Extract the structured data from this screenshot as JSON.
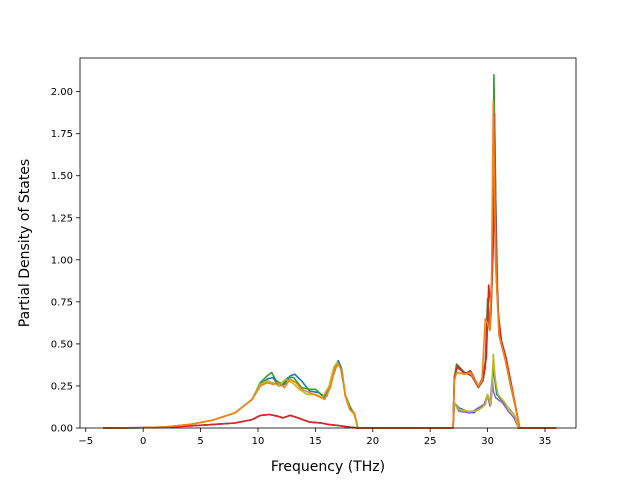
{
  "chart_data": {
    "type": "line",
    "title": "",
    "xlabel": "Frequency (THz)",
    "ylabel": "Partial Density of States",
    "xlim": [
      -5.5,
      37.7
    ],
    "ylim": [
      0,
      2.2
    ],
    "xticks": [
      -5,
      0,
      5,
      10,
      15,
      20,
      25,
      30,
      35
    ],
    "xtick_labels": [
      "−5",
      "0",
      "5",
      "10",
      "15",
      "20",
      "25",
      "30",
      "35"
    ],
    "yticks": [
      0,
      0.25,
      0.5,
      0.75,
      1.0,
      1.25,
      1.5,
      1.75,
      2.0
    ],
    "ytick_labels": [
      "0.00",
      "0.25",
      "0.50",
      "0.75",
      "1.00",
      "1.25",
      "1.50",
      "1.75",
      "2.00"
    ],
    "grid": false,
    "legend": "none",
    "series": [
      {
        "color": "#1f77b4",
        "points": [
          [
            -3.5,
            0
          ],
          [
            0,
            0.002
          ],
          [
            2,
            0.006
          ],
          [
            4,
            0.02
          ],
          [
            6,
            0.045
          ],
          [
            8,
            0.09
          ],
          [
            9.5,
            0.17
          ],
          [
            10.2,
            0.26
          ],
          [
            10.8,
            0.29
          ],
          [
            11.3,
            0.3
          ],
          [
            11.8,
            0.25
          ],
          [
            12.3,
            0.26
          ],
          [
            12.8,
            0.31
          ],
          [
            13.2,
            0.32
          ],
          [
            13.8,
            0.28
          ],
          [
            14.5,
            0.22
          ],
          [
            15.3,
            0.21
          ],
          [
            15.8,
            0.18
          ],
          [
            16.3,
            0.26
          ],
          [
            16.7,
            0.37
          ],
          [
            17.0,
            0.4
          ],
          [
            17.3,
            0.35
          ],
          [
            17.6,
            0.2
          ],
          [
            18.0,
            0.12
          ],
          [
            18.4,
            0.09
          ],
          [
            18.7,
            0
          ],
          [
            27.0,
            0
          ],
          [
            27.1,
            0.15
          ],
          [
            27.5,
            0.12
          ],
          [
            28.2,
            0.1
          ],
          [
            28.8,
            0.09
          ],
          [
            29.3,
            0.12
          ],
          [
            29.8,
            0.14
          ],
          [
            30.0,
            0.19
          ],
          [
            30.3,
            0.14
          ],
          [
            30.5,
            0.38
          ],
          [
            30.6,
            0.3
          ],
          [
            30.8,
            0.2
          ],
          [
            31.3,
            0.16
          ],
          [
            31.8,
            0.12
          ],
          [
            32.3,
            0.08
          ],
          [
            32.7,
            0
          ],
          [
            36,
            0
          ]
        ]
      },
      {
        "color": "#2ca02c",
        "points": [
          [
            -3.5,
            0
          ],
          [
            0,
            0.002
          ],
          [
            2,
            0.007
          ],
          [
            4,
            0.02
          ],
          [
            6,
            0.045
          ],
          [
            8,
            0.09
          ],
          [
            9.5,
            0.17
          ],
          [
            10.2,
            0.27
          ],
          [
            10.8,
            0.31
          ],
          [
            11.2,
            0.33
          ],
          [
            11.6,
            0.28
          ],
          [
            12.2,
            0.26
          ],
          [
            12.6,
            0.3
          ],
          [
            13.1,
            0.3
          ],
          [
            13.8,
            0.24
          ],
          [
            14.5,
            0.23
          ],
          [
            15.0,
            0.23
          ],
          [
            15.5,
            0.2
          ],
          [
            16.0,
            0.19
          ],
          [
            16.5,
            0.3
          ],
          [
            16.9,
            0.38
          ],
          [
            17.2,
            0.36
          ],
          [
            17.6,
            0.2
          ],
          [
            18.0,
            0.13
          ],
          [
            18.4,
            0.08
          ],
          [
            18.7,
            0
          ],
          [
            27.0,
            0
          ],
          [
            27.1,
            0.3
          ],
          [
            27.3,
            0.38
          ],
          [
            28.0,
            0.33
          ],
          [
            28.5,
            0.33
          ],
          [
            29.2,
            0.25
          ],
          [
            29.6,
            0.3
          ],
          [
            29.8,
            0.4
          ],
          [
            30.0,
            0.77
          ],
          [
            30.2,
            0.62
          ],
          [
            30.3,
            0.7
          ],
          [
            30.45,
            1.0
          ],
          [
            30.55,
            2.1
          ],
          [
            30.65,
            1.6
          ],
          [
            30.8,
            0.9
          ],
          [
            31.0,
            0.55
          ],
          [
            31.5,
            0.42
          ],
          [
            32.0,
            0.25
          ],
          [
            32.5,
            0.1
          ],
          [
            32.8,
            0
          ],
          [
            36,
            0
          ]
        ]
      },
      {
        "color": "#9467bd",
        "points": [
          [
            -3.5,
            0
          ],
          [
            0,
            0.002
          ],
          [
            2,
            0.005
          ],
          [
            4,
            0.012
          ],
          [
            6,
            0.02
          ],
          [
            8,
            0.03
          ],
          [
            9.5,
            0.05
          ],
          [
            10.2,
            0.075
          ],
          [
            11.0,
            0.08
          ],
          [
            11.7,
            0.07
          ],
          [
            12.2,
            0.06
          ],
          [
            12.8,
            0.075
          ],
          [
            13.5,
            0.06
          ],
          [
            14.5,
            0.035
          ],
          [
            15.5,
            0.03
          ],
          [
            16.2,
            0.02
          ],
          [
            17.0,
            0.015
          ],
          [
            18.0,
            0.005
          ],
          [
            18.7,
            0
          ],
          [
            27.0,
            0
          ],
          [
            27.1,
            0.15
          ],
          [
            27.5,
            0.1
          ],
          [
            28.5,
            0.09
          ],
          [
            29.2,
            0.12
          ],
          [
            29.7,
            0.14
          ],
          [
            30.0,
            0.2
          ],
          [
            30.2,
            0.13
          ],
          [
            30.4,
            0.3
          ],
          [
            30.5,
            0.22
          ],
          [
            30.7,
            0.18
          ],
          [
            31.3,
            0.15
          ],
          [
            31.8,
            0.1
          ],
          [
            32.3,
            0.06
          ],
          [
            32.7,
            0
          ],
          [
            36,
            0
          ]
        ]
      },
      {
        "color": "#bcbd22",
        "points": [
          [
            -3.5,
            0
          ],
          [
            0,
            0.002
          ],
          [
            2,
            0.006
          ],
          [
            4,
            0.02
          ],
          [
            6,
            0.045
          ],
          [
            8,
            0.09
          ],
          [
            9.5,
            0.17
          ],
          [
            10.2,
            0.26
          ],
          [
            10.8,
            0.28
          ],
          [
            11.3,
            0.27
          ],
          [
            11.8,
            0.25
          ],
          [
            12.4,
            0.29
          ],
          [
            13.0,
            0.27
          ],
          [
            13.6,
            0.23
          ],
          [
            14.3,
            0.2
          ],
          [
            15.0,
            0.2
          ],
          [
            15.6,
            0.18
          ],
          [
            16.2,
            0.25
          ],
          [
            16.6,
            0.36
          ],
          [
            16.9,
            0.39
          ],
          [
            17.3,
            0.34
          ],
          [
            17.6,
            0.2
          ],
          [
            18.0,
            0.11
          ],
          [
            18.4,
            0.09
          ],
          [
            18.7,
            0
          ],
          [
            27.0,
            0
          ],
          [
            27.1,
            0.15
          ],
          [
            27.5,
            0.11
          ],
          [
            28.3,
            0.1
          ],
          [
            29.0,
            0.1
          ],
          [
            29.5,
            0.12
          ],
          [
            29.8,
            0.14
          ],
          [
            30.0,
            0.2
          ],
          [
            30.3,
            0.14
          ],
          [
            30.5,
            0.44
          ],
          [
            30.65,
            0.3
          ],
          [
            30.9,
            0.2
          ],
          [
            31.4,
            0.16
          ],
          [
            31.9,
            0.11
          ],
          [
            32.4,
            0.07
          ],
          [
            32.7,
            0
          ],
          [
            36,
            0
          ]
        ]
      },
      {
        "color": "#8c564b",
        "points": [
          [
            -3.5,
            0
          ],
          [
            0,
            0.002
          ],
          [
            2,
            0.005
          ],
          [
            4,
            0.012
          ],
          [
            6,
            0.02
          ],
          [
            8,
            0.03
          ],
          [
            9.5,
            0.05
          ],
          [
            10.2,
            0.075
          ],
          [
            11.0,
            0.08
          ],
          [
            11.7,
            0.07
          ],
          [
            12.2,
            0.06
          ],
          [
            12.8,
            0.075
          ],
          [
            13.5,
            0.06
          ],
          [
            14.5,
            0.035
          ],
          [
            15.5,
            0.03
          ],
          [
            16.2,
            0.02
          ],
          [
            17.0,
            0.015
          ],
          [
            18.0,
            0.005
          ],
          [
            18.7,
            0
          ],
          [
            27.0,
            0
          ],
          [
            27.1,
            0.28
          ],
          [
            27.3,
            0.36
          ],
          [
            28.0,
            0.33
          ],
          [
            28.6,
            0.31
          ],
          [
            29.2,
            0.24
          ],
          [
            29.6,
            0.28
          ],
          [
            29.8,
            0.36
          ],
          [
            30.0,
            0.72
          ],
          [
            30.2,
            0.58
          ],
          [
            30.3,
            0.68
          ],
          [
            30.5,
            1.2
          ],
          [
            30.6,
            1.87
          ],
          [
            30.7,
            1.4
          ],
          [
            30.85,
            0.85
          ],
          [
            31.0,
            0.55
          ],
          [
            31.5,
            0.42
          ],
          [
            32.0,
            0.27
          ],
          [
            32.5,
            0.11
          ],
          [
            32.8,
            0
          ],
          [
            36,
            0
          ]
        ]
      },
      {
        "color": "#d62728",
        "points": [
          [
            -3.5,
            0
          ],
          [
            0,
            0.002
          ],
          [
            2,
            0.005
          ],
          [
            4,
            0.012
          ],
          [
            6,
            0.02
          ],
          [
            8,
            0.03
          ],
          [
            9.5,
            0.05
          ],
          [
            10.2,
            0.075
          ],
          [
            11.0,
            0.08
          ],
          [
            11.7,
            0.07
          ],
          [
            12.2,
            0.06
          ],
          [
            12.8,
            0.075
          ],
          [
            13.5,
            0.06
          ],
          [
            14.5,
            0.035
          ],
          [
            15.5,
            0.03
          ],
          [
            16.2,
            0.02
          ],
          [
            17.0,
            0.015
          ],
          [
            18.0,
            0.005
          ],
          [
            18.7,
            0
          ],
          [
            27.0,
            0
          ],
          [
            27.1,
            0.3
          ],
          [
            27.4,
            0.37
          ],
          [
            28.0,
            0.32
          ],
          [
            28.5,
            0.34
          ],
          [
            29.2,
            0.25
          ],
          [
            29.6,
            0.3
          ],
          [
            29.9,
            0.42
          ],
          [
            30.1,
            0.85
          ],
          [
            30.3,
            0.72
          ],
          [
            30.5,
            1.1
          ],
          [
            30.6,
            1.45
          ],
          [
            30.7,
            1.0
          ],
          [
            30.9,
            0.7
          ],
          [
            31.2,
            0.52
          ],
          [
            31.6,
            0.42
          ],
          [
            32.1,
            0.25
          ],
          [
            32.5,
            0.1
          ],
          [
            32.8,
            0
          ],
          [
            36,
            0
          ]
        ]
      },
      {
        "color": "#ff7f0e",
        "points": [
          [
            -3.5,
            0
          ],
          [
            0,
            0.002
          ],
          [
            2,
            0.006
          ],
          [
            4,
            0.02
          ],
          [
            6,
            0.045
          ],
          [
            8,
            0.09
          ],
          [
            9.5,
            0.17
          ],
          [
            10.2,
            0.25
          ],
          [
            10.8,
            0.27
          ],
          [
            11.3,
            0.26
          ],
          [
            11.8,
            0.27
          ],
          [
            12.3,
            0.24
          ],
          [
            12.8,
            0.29
          ],
          [
            13.3,
            0.27
          ],
          [
            13.8,
            0.23
          ],
          [
            14.5,
            0.21
          ],
          [
            15.2,
            0.19
          ],
          [
            15.8,
            0.17
          ],
          [
            16.3,
            0.24
          ],
          [
            16.7,
            0.35
          ],
          [
            17.0,
            0.38
          ],
          [
            17.3,
            0.34
          ],
          [
            17.6,
            0.19
          ],
          [
            18.0,
            0.11
          ],
          [
            18.4,
            0.08
          ],
          [
            18.7,
            0
          ],
          [
            27.0,
            0
          ],
          [
            27.1,
            0.28
          ],
          [
            27.3,
            0.33
          ],
          [
            28.0,
            0.32
          ],
          [
            28.5,
            0.33
          ],
          [
            29.2,
            0.25
          ],
          [
            29.5,
            0.28
          ],
          [
            29.8,
            0.65
          ],
          [
            30.0,
            0.62
          ],
          [
            30.2,
            0.58
          ],
          [
            30.35,
            0.9
          ],
          [
            30.5,
            1.95
          ],
          [
            30.6,
            1.4
          ],
          [
            30.75,
            0.9
          ],
          [
            31.0,
            0.55
          ],
          [
            31.5,
            0.42
          ],
          [
            32.0,
            0.26
          ],
          [
            32.5,
            0.1
          ],
          [
            32.8,
            0
          ],
          [
            36,
            0
          ]
        ]
      }
    ]
  }
}
